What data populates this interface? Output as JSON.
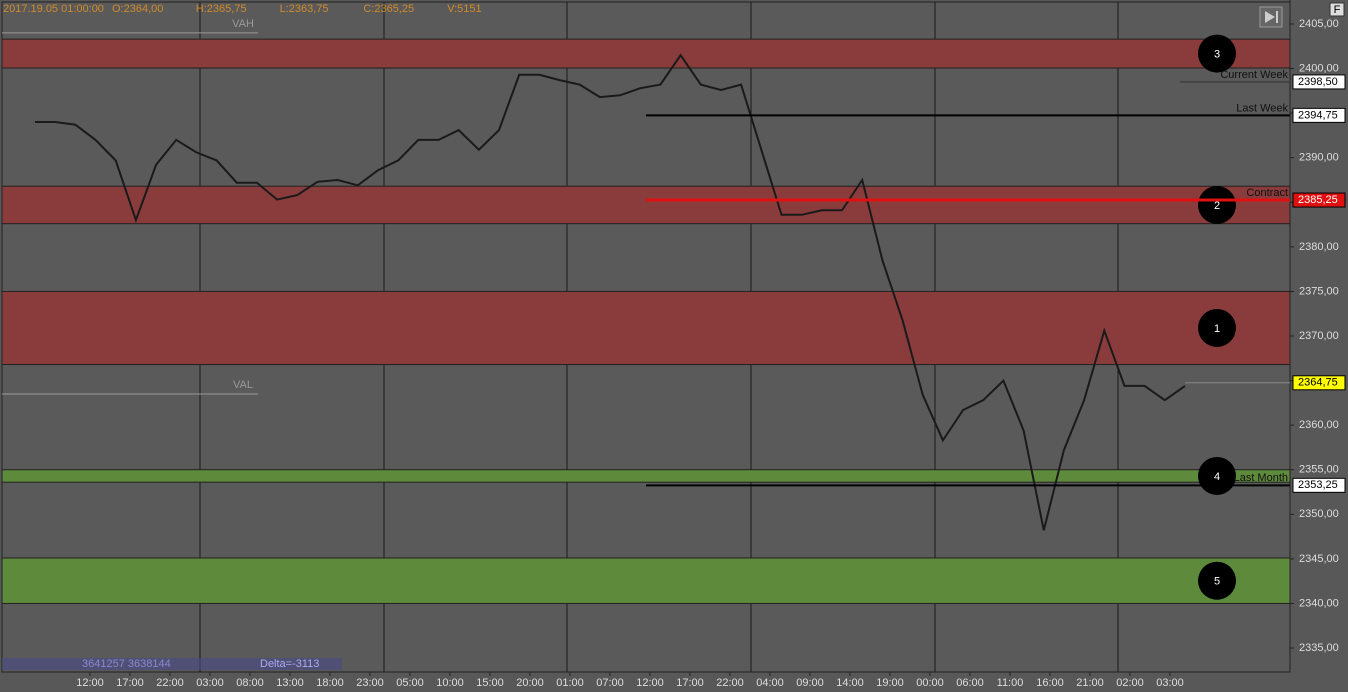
{
  "chart_data": {
    "type": "line",
    "header": [
      "2017.19.05 01:00:00",
      "O:2364,00",
      "H:2365,75",
      "L:2363,75",
      "C:2365,25",
      "V:5151"
    ],
    "corner_button": "F",
    "ylim": [
      2332.31,
      2407.69
    ],
    "yticks": [
      {
        "value": 2335,
        "label": "2335,00"
      },
      {
        "value": 2340,
        "label": "2340,00"
      },
      {
        "value": 2345,
        "label": "2345,00"
      },
      {
        "value": 2350,
        "label": "2350,00"
      },
      {
        "value": 2355,
        "label": "2355,00"
      },
      {
        "value": 2360,
        "label": "2360,00"
      },
      {
        "value": 2365,
        "label": "2365,00"
      },
      {
        "value": 2370,
        "label": "2370,00"
      },
      {
        "value": 2375,
        "label": "2375,00"
      },
      {
        "value": 2380,
        "label": "2380,00"
      },
      {
        "value": 2385,
        "label": "2385,00"
      },
      {
        "value": 2390,
        "label": "2390,00"
      },
      {
        "value": 2395,
        "label": "2395,00"
      },
      {
        "value": 2400,
        "label": "2400,00"
      },
      {
        "value": 2405,
        "label": "2405,00"
      }
    ],
    "xtick_labels": [
      "12:00",
      "17:00",
      "22:00",
      "03:00",
      "08:00",
      "13:00",
      "18:00",
      "23:00",
      "05:00",
      "10:00",
      "15:00",
      "20:00",
      "01:00",
      "07:00",
      "12:00",
      "17:00",
      "22:00",
      "04:00",
      "09:00",
      "14:00",
      "19:00",
      "00:00",
      "06:00",
      "11:00",
      "16:00",
      "21:00",
      "02:00",
      "03:00"
    ],
    "series": [
      {
        "color": "#1a1a1a",
        "values": [
          2394.0,
          2394.0,
          2393.7,
          2392.0,
          2389.7,
          2383.0,
          2389.2,
          2392.0,
          2390.6,
          2389.7,
          2387.2,
          2387.2,
          2385.3,
          2385.8,
          2387.3,
          2387.5,
          2386.9,
          2388.6,
          2389.7,
          2392.0,
          2392.0,
          2393.1,
          2390.9,
          2393.1,
          2399.3,
          2399.3,
          2398.7,
          2398.2,
          2396.8,
          2397.0,
          2397.8,
          2398.2,
          2401.5,
          2398.2,
          2397.6,
          2398.2,
          2390.9,
          2383.6,
          2383.6,
          2384.1,
          2384.1,
          2387.5,
          2378.5,
          2371.8,
          2363.4,
          2358.3,
          2361.7,
          2362.8,
          2365.0,
          2359.4,
          2348.2,
          2357.2,
          2362.8,
          2370.6,
          2364.4,
          2364.4,
          2362.8,
          2364.4
        ]
      }
    ],
    "zones": [
      {
        "label": "3",
        "from": 2400.06,
        "to": 2403.3,
        "color": "#8a3c3c"
      },
      {
        "label": "2",
        "from": 2382.6,
        "to": 2386.8,
        "color": "#8a3c3c"
      },
      {
        "label": "1",
        "from": 2366.8,
        "to": 2375.0,
        "color": "#8a3c3c"
      },
      {
        "label": "4",
        "from": 2353.6,
        "to": 2355.0,
        "color": "#5e8a3c"
      },
      {
        "label": "5",
        "from": 2340.0,
        "to": 2345.1,
        "color": "#5e8a3c"
      }
    ],
    "levels": [
      {
        "name": "Current Week",
        "value": 2398.5,
        "value_label": "2398,50",
        "color": "#444444"
      },
      {
        "name": "Last Week",
        "value": 2394.75,
        "value_label": "2394,75",
        "color": "#000000"
      },
      {
        "name": "Contract",
        "value": 2385.25,
        "value_label": "2385,25",
        "color": "#e01010"
      },
      {
        "name": "Last Month",
        "value": 2353.25,
        "value_label": "2353,25",
        "color": "#000000"
      }
    ],
    "last_price": {
      "value": 2364.75,
      "value_label": "2364,75",
      "color": "#ffff00"
    },
    "value_area": [
      {
        "label": "VAH",
        "value": 2404.0
      },
      {
        "label": "VAL",
        "value": 2363.5
      }
    ],
    "footer": {
      "volumes": "3641257 3638144",
      "delta": "Delta=-3113"
    }
  }
}
